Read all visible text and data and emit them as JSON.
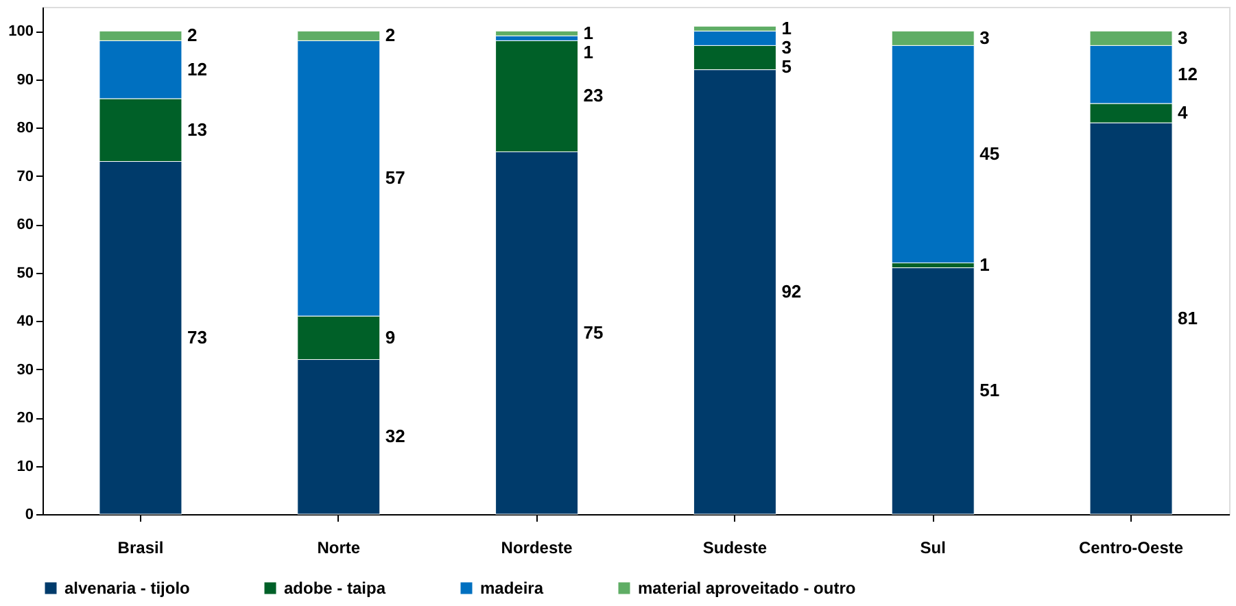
{
  "chart_data": {
    "type": "bar",
    "stacked": true,
    "data_labels": true,
    "legend": "bottom",
    "grid": false,
    "categories": [
      "Brasil",
      "Norte",
      "Nordeste",
      "Sudeste",
      "Sul",
      "Centro-Oeste"
    ],
    "series": [
      {
        "name": "alvenaria - tijolo",
        "color": "#003b6b",
        "values": [
          73,
          32,
          75,
          92,
          51,
          81
        ]
      },
      {
        "name": "adobe - taipa",
        "color": "#006028",
        "values": [
          13,
          9,
          23,
          5,
          1,
          4
        ]
      },
      {
        "name": "madeira",
        "color": "#0070c0",
        "values": [
          12,
          57,
          1,
          3,
          45,
          12
        ]
      },
      {
        "name": "material aproveitado - outro",
        "color": "#5fad65",
        "values": [
          2,
          2,
          1,
          1,
          3,
          3
        ]
      }
    ],
    "ylim": [
      0,
      105
    ],
    "yticks": [
      0,
      10,
      20,
      30,
      40,
      50,
      60,
      70,
      80,
      90,
      100
    ]
  }
}
